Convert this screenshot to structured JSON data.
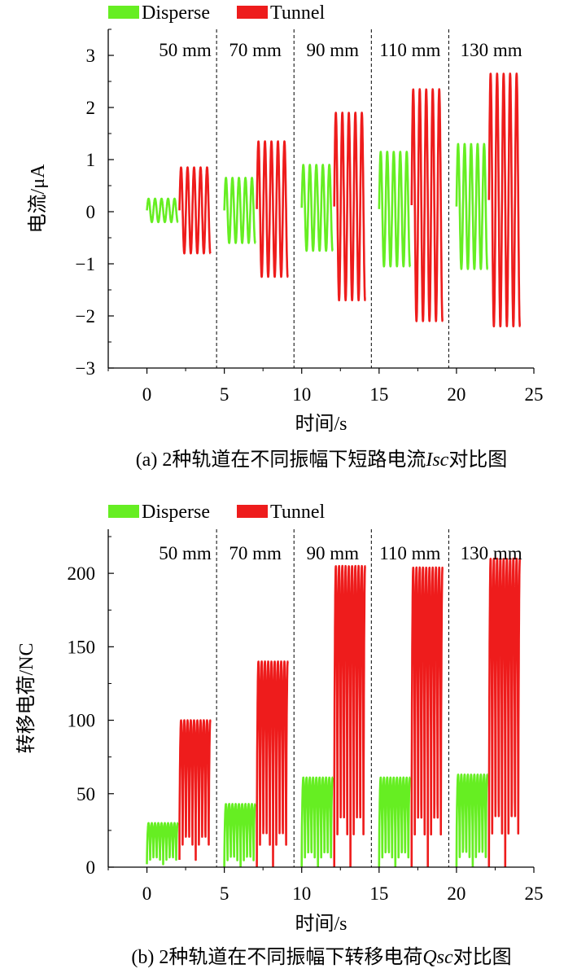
{
  "chart_data": [
    {
      "id": "a",
      "type": "line",
      "caption_prefix": "(a) 2种轨道在不同振幅下短路电流",
      "caption_var": "Isc",
      "caption_suffix": "对比图",
      "xlabel": "时间/s",
      "ylabel": "电流/μA",
      "xlim": [
        -2.5,
        25
      ],
      "ylim": [
        -3,
        3.5
      ],
      "xticks": [
        0,
        5,
        10,
        15,
        20,
        25
      ],
      "yticks": [
        -3,
        -2,
        -1,
        0,
        1,
        2,
        3
      ],
      "ytick_labels": [
        "−3",
        "−2",
        "−1",
        "0",
        "1",
        "2",
        "3"
      ],
      "legend": [
        {
          "name": "Disperse",
          "color": "#66ee22"
        },
        {
          "name": "Tunnel",
          "color": "#ee1c1c"
        }
      ],
      "dividers": [
        4.5,
        9.5,
        14.5,
        19.5
      ],
      "regions": [
        "50 mm",
        "70 mm",
        "90 mm",
        "110 mm",
        "130 mm"
      ],
      "series": [
        {
          "name": "Disperse",
          "color": "#66ee22",
          "kind": "wave",
          "segments": [
            {
              "t0": 0.0,
              "t1": 2.0,
              "period": 0.42,
              "high": 0.25,
              "low": -0.2
            },
            {
              "t0": 5.0,
              "t1": 7.0,
              "period": 0.42,
              "high": 0.65,
              "low": -0.6
            },
            {
              "t0": 10.0,
              "t1": 12.0,
              "period": 0.42,
              "high": 0.9,
              "low": -0.75
            },
            {
              "t0": 15.0,
              "t1": 17.0,
              "period": 0.42,
              "high": 1.15,
              "low": -1.05
            },
            {
              "t0": 20.0,
              "t1": 22.0,
              "period": 0.42,
              "high": 1.3,
              "low": -1.1
            }
          ]
        },
        {
          "name": "Tunnel",
          "color": "#ee1c1c",
          "kind": "wave",
          "segments": [
            {
              "t0": 2.1,
              "t1": 4.1,
              "period": 0.42,
              "high": 0.85,
              "low": -0.8
            },
            {
              "t0": 7.1,
              "t1": 9.1,
              "period": 0.42,
              "high": 1.35,
              "low": -1.25
            },
            {
              "t0": 12.1,
              "t1": 14.1,
              "period": 0.42,
              "high": 1.9,
              "low": -1.7
            },
            {
              "t0": 17.1,
              "t1": 19.1,
              "period": 0.42,
              "high": 2.35,
              "low": -2.1
            },
            {
              "t0": 22.1,
              "t1": 24.1,
              "period": 0.42,
              "high": 2.65,
              "low": -2.2
            }
          ]
        }
      ]
    },
    {
      "id": "b",
      "type": "line",
      "caption_prefix": "(b) 2种轨道在不同振幅下转移电荷",
      "caption_var": "Qsc",
      "caption_suffix": "对比图",
      "xlabel": "时间/s",
      "ylabel": "转移电荷/NC",
      "xlim": [
        -2.5,
        25
      ],
      "ylim": [
        0,
        230
      ],
      "xticks": [
        0,
        5,
        10,
        15,
        20,
        25
      ],
      "yticks": [
        0,
        50,
        100,
        150,
        200
      ],
      "ytick_labels": [
        "0",
        "50",
        "100",
        "150",
        "200"
      ],
      "legend": [
        {
          "name": "Disperse",
          "color": "#66ee22"
        },
        {
          "name": "Tunnel",
          "color": "#ee1c1c"
        }
      ],
      "dividers": [
        4.5,
        9.5,
        14.5,
        19.5
      ],
      "regions": [
        "50 mm",
        "70 mm",
        "90 mm",
        "110 mm",
        "130 mm"
      ],
      "series": [
        {
          "name": "Disperse",
          "color": "#66ee22",
          "kind": "pulse",
          "segments": [
            {
              "t0": 0.0,
              "t1": 2.0,
              "period": 0.42,
              "high": 30,
              "low": 2
            },
            {
              "t0": 5.0,
              "t1": 7.0,
              "period": 0.42,
              "high": 43,
              "low": 0
            },
            {
              "t0": 10.0,
              "t1": 12.0,
              "period": 0.42,
              "high": 61,
              "low": 0
            },
            {
              "t0": 15.0,
              "t1": 17.0,
              "period": 0.42,
              "high": 61,
              "low": 0
            },
            {
              "t0": 20.0,
              "t1": 22.0,
              "period": 0.42,
              "high": 63,
              "low": 0
            }
          ]
        },
        {
          "name": "Tunnel",
          "color": "#ee1c1c",
          "kind": "pulse",
          "segments": [
            {
              "t0": 2.1,
              "t1": 4.1,
              "period": 0.42,
              "high": 100,
              "low": 5
            },
            {
              "t0": 7.1,
              "t1": 9.1,
              "period": 0.42,
              "high": 140,
              "low": 0
            },
            {
              "t0": 12.1,
              "t1": 14.1,
              "period": 0.42,
              "high": 205,
              "low": 0
            },
            {
              "t0": 17.1,
              "t1": 19.1,
              "period": 0.42,
              "high": 204,
              "low": 0
            },
            {
              "t0": 22.1,
              "t1": 24.1,
              "period": 0.42,
              "high": 210,
              "low": 0
            }
          ]
        }
      ]
    }
  ]
}
